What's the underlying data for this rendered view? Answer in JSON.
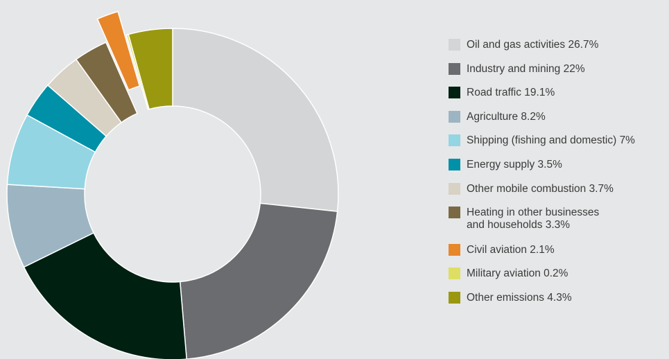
{
  "chart_data": {
    "type": "pie",
    "variant": "donut",
    "title": "",
    "categories": [
      "Oil and gas activities 26.7%",
      "Industry and mining 22%",
      "Road traffic 19.1%",
      "Agriculture 8.2%",
      "Shipping (fishing and domestic) 7%",
      "Energy supply 3.5%",
      "Other mobile combustion 3.7%",
      "Heating in other businesses\nand households 3.3%",
      "Civil aviation 2.1%",
      "Military aviation 0.2%",
      "Other emissions 4.3%"
    ],
    "values": [
      26.7,
      22,
      19.1,
      8.2,
      7,
      3.5,
      3.7,
      3.3,
      2.1,
      0.2,
      4.3
    ],
    "colors": [
      "#d4d5d6",
      "#6b6c6f",
      "#002012",
      "#9db5c3",
      "#93d5e3",
      "#0090a8",
      "#d8d2c4",
      "#7b6944",
      "#e8862a",
      "#dede62",
      "#9a980f"
    ],
    "exploded": [
      false,
      false,
      false,
      false,
      false,
      false,
      false,
      false,
      true,
      false,
      false
    ],
    "legend_position": "right"
  }
}
